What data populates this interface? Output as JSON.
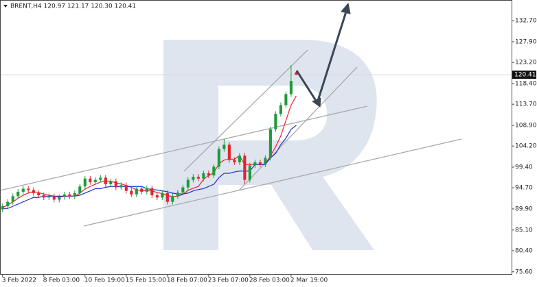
{
  "chart_data": {
    "type": "candlestick",
    "title": "BRENT,H4  120.97 121.17 120.30 120.41",
    "up_color": "#1e9b3a",
    "down_color": "#e0262b",
    "xlim": [
      -0.5,
      98.8
    ],
    "xticks": [
      {
        "value": 0,
        "label": "3 Feb 2022"
      },
      {
        "value": 8,
        "label": "8 Feb 03:00"
      },
      {
        "value": 16,
        "label": "10 Feb 19:00"
      },
      {
        "value": 24,
        "label": "15 Feb 15:00"
      },
      {
        "value": 32,
        "label": "18 Feb 07:00"
      },
      {
        "value": 40,
        "label": "23 Feb 07:00"
      },
      {
        "value": 48,
        "label": "28 Feb 03:00"
      },
      {
        "value": 56,
        "label": "2 Mar 19:00"
      }
    ],
    "ylim": [
      75.1,
      137.4
    ],
    "yticks": [
      {
        "value": 75.6,
        "label": "75.60"
      },
      {
        "value": 80.4,
        "label": "80.40"
      },
      {
        "value": 85.1,
        "label": "85.10"
      },
      {
        "value": 89.9,
        "label": "89.90"
      },
      {
        "value": 94.7,
        "label": "94.70"
      },
      {
        "value": 99.4,
        "label": "99.40"
      },
      {
        "value": 104.2,
        "label": "104.20"
      },
      {
        "value": 108.9,
        "label": "108.90"
      },
      {
        "value": 113.7,
        "label": "113.70"
      },
      {
        "value": 118.4,
        "label": "118.40"
      },
      {
        "value": 123.2,
        "label": "123.20"
      },
      {
        "value": 127.9,
        "label": "127.90"
      },
      {
        "value": 132.7,
        "label": "132.70"
      }
    ],
    "current_price": 120.41,
    "open": [
      89.8,
      90.5,
      91.5,
      92.8,
      93.8,
      94.5,
      94.2,
      93.5,
      93.0,
      92.5,
      92.8,
      92.0,
      92.6,
      93.2,
      92.7,
      93.5,
      95.0,
      96.8,
      96.0,
      96.5,
      97.0,
      95.5,
      96.2,
      94.8,
      95.3,
      94.0,
      93.2,
      94.5,
      93.8,
      94.6,
      93.0,
      92.5,
      93.5,
      91.5,
      92.8,
      93.6,
      94.8,
      96.5,
      97.2,
      96.8,
      98.0,
      97.5,
      99.5,
      103.5,
      104.5,
      101.0,
      100.5,
      102.0,
      96.5,
      99.8,
      100.5,
      100.0,
      101.5,
      108.0,
      111.5,
      113.5,
      116.0,
      120.97
    ],
    "high": [
      91.1,
      92.1,
      93.4,
      94.4,
      95.1,
      95.1,
      94.8,
      94.1,
      93.6,
      93.4,
      93.4,
      93.2,
      93.8,
      93.8,
      94.1,
      95.6,
      97.4,
      97.4,
      97.1,
      97.6,
      97.6,
      96.8,
      96.8,
      95.9,
      95.9,
      94.6,
      95.1,
      95.1,
      95.2,
      95.2,
      93.6,
      94.1,
      94.1,
      93.4,
      94.2,
      95.4,
      97.1,
      97.8,
      97.8,
      98.6,
      98.6,
      100.1,
      104.1,
      105.8,
      105.1,
      101.6,
      102.6,
      102.6,
      100.4,
      101.1,
      101.1,
      102.1,
      108.6,
      112.1,
      114.1,
      116.6,
      122.6,
      121.17
    ],
    "low": [
      89.2,
      89.9,
      90.9,
      92.2,
      93.2,
      93.6,
      92.9,
      92.4,
      91.9,
      91.9,
      91.4,
      91.4,
      92.0,
      92.1,
      92.1,
      92.9,
      94.4,
      95.4,
      95.4,
      95.9,
      94.9,
      94.9,
      94.2,
      94.2,
      93.4,
      92.6,
      92.6,
      93.2,
      93.2,
      92.4,
      91.9,
      91.9,
      90.9,
      90.9,
      92.2,
      93.0,
      94.2,
      95.9,
      96.2,
      96.2,
      96.9,
      96.9,
      98.9,
      102.9,
      100.4,
      99.9,
      99.9,
      95.5,
      95.9,
      99.2,
      99.4,
      99.4,
      100.9,
      107.4,
      110.9,
      112.9,
      115.4,
      120.3
    ],
    "close": [
      90.5,
      91.5,
      92.8,
      93.8,
      94.5,
      94.2,
      93.5,
      93.0,
      92.5,
      92.8,
      92.0,
      92.6,
      93.2,
      92.7,
      93.5,
      95.0,
      96.8,
      96.0,
      96.5,
      97.0,
      95.5,
      96.2,
      94.8,
      95.3,
      94.0,
      93.2,
      94.5,
      93.8,
      94.6,
      93.0,
      92.5,
      93.5,
      91.5,
      92.8,
      93.6,
      94.8,
      96.5,
      97.2,
      96.8,
      98.0,
      97.5,
      99.5,
      103.5,
      104.5,
      101.0,
      100.5,
      102.0,
      96.5,
      99.8,
      100.5,
      100.0,
      101.5,
      108.0,
      111.5,
      113.5,
      116.0,
      119.0,
      120.41
    ],
    "lines": [
      {
        "color": "#e8202a",
        "values": [
          90.2,
          90.8,
          91.5,
          92.3,
          93.0,
          93.5,
          93.8,
          93.6,
          93.3,
          93.0,
          92.8,
          92.6,
          92.7,
          92.8,
          92.8,
          93.5,
          94.4,
          95.0,
          95.5,
          96.0,
          96.2,
          96.2,
          95.8,
          95.6,
          95.2,
          94.8,
          94.2,
          94.1,
          94.0,
          94.0,
          93.6,
          93.4,
          92.9,
          92.7,
          92.8,
          93.2,
          94.1,
          94.6,
          95.0,
          96.6,
          97.5,
          98.1,
          100.2,
          101.0,
          101.2,
          101.2,
          102.0,
          100.0,
          100.0,
          100.0,
          100.0,
          100.1,
          102.0,
          104.0,
          106.5,
          110.0,
          113.5,
          115.6
        ]
      },
      {
        "color": "#1f2fd6",
        "values": [
          90.0,
          90.0,
          90.5,
          91.0,
          91.5,
          92.0,
          92.5,
          92.5,
          92.8,
          92.8,
          92.8,
          92.8,
          92.8,
          92.8,
          92.8,
          93.0,
          93.5,
          94.0,
          94.5,
          94.5,
          94.8,
          95.0,
          95.0,
          95.0,
          95.0,
          95.0,
          95.0,
          95.0,
          94.5,
          94.3,
          94.2,
          94.0,
          93.8,
          93.5,
          93.3,
          93.3,
          93.5,
          94.0,
          94.3,
          94.5,
          95.0,
          95.5,
          97.0,
          98.0,
          98.0,
          98.3,
          98.5,
          98.5,
          98.5,
          100.0,
          100.0,
          100.0,
          101.5,
          102.5,
          104.5,
          106.0,
          108.0,
          108.9
        ]
      }
    ]
  }
}
